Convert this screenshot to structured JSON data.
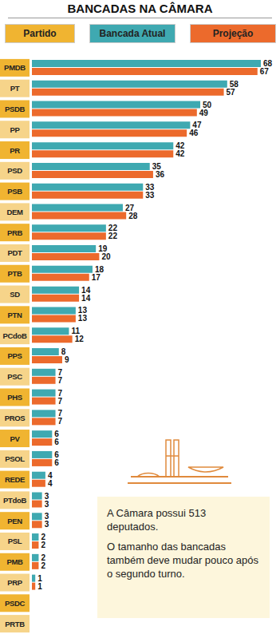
{
  "chart_data": {
    "type": "bar",
    "orientation": "horizontal",
    "title": "BANCADAS NA CÂMARA",
    "y_label": "Partido",
    "categories": [
      "PMDB",
      "PT",
      "PSDB",
      "PP",
      "PR",
      "PSD",
      "PSB",
      "DEM",
      "PRB",
      "PDT",
      "PTB",
      "SD",
      "PTN",
      "PCdoB",
      "PPS",
      "PSC",
      "PHS",
      "PROS",
      "PV",
      "PSOL",
      "REDE",
      "PTdoB",
      "PEN",
      "PSL",
      "PMB",
      "PRP",
      "PSDC",
      "PRTB"
    ],
    "series": [
      {
        "name": "Bancada Atual",
        "color": "#3fa9b1",
        "values": [
          68,
          58,
          50,
          47,
          42,
          35,
          33,
          27,
          22,
          19,
          18,
          14,
          13,
          11,
          8,
          7,
          7,
          7,
          6,
          6,
          4,
          3,
          3,
          2,
          2,
          1,
          0,
          0
        ]
      },
      {
        "name": "Projeção",
        "color": "#ec6a2c",
        "values": [
          67,
          57,
          49,
          46,
          42,
          36,
          33,
          28,
          22,
          20,
          17,
          14,
          13,
          12,
          9,
          7,
          7,
          7,
          6,
          6,
          4,
          3,
          3,
          2,
          2,
          1,
          0,
          0
        ]
      }
    ],
    "data_labels": true,
    "tick_labels": "y",
    "grid": false,
    "annotations": [
      "A Câmara possui 513 deputados.",
      "O tamanho das bancadas também deve mudar pouco após o segundo turno."
    ]
  }
}
